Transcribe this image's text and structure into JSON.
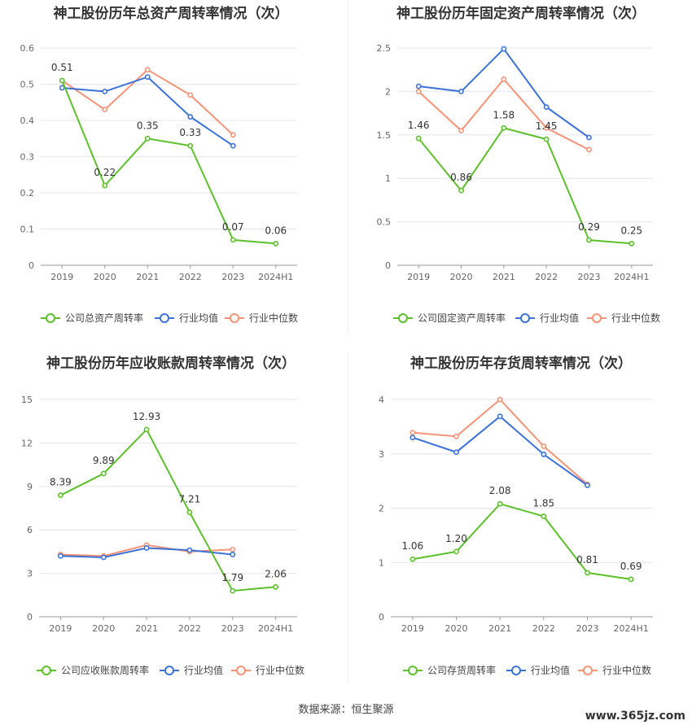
{
  "source_note": "数据来源：恒生聚源",
  "watermark": "www.365jz.com",
  "colors": {
    "company": "#5cc02b",
    "industry_avg": "#3c72d8",
    "industry_median": "#f59377"
  },
  "chart_data": [
    {
      "type": "line",
      "title": "神工股份历年总资产周转率情况（次）",
      "categories": [
        "2019",
        "2020",
        "2021",
        "2022",
        "2023",
        "2024H1"
      ],
      "y_ticks": [
        "0",
        "0.1",
        "0.2",
        "0.3",
        "0.4",
        "0.5",
        "0.6"
      ],
      "ylim": [
        0,
        0.6
      ],
      "grid": true,
      "legend_position": "bottom",
      "series": [
        {
          "name": "公司总资产周转率",
          "values": [
            0.51,
            0.22,
            0.35,
            0.33,
            0.07,
            0.06
          ],
          "labels": [
            "0.51",
            "0.22",
            "0.35",
            "0.33",
            "0.07",
            "0.06"
          ]
        },
        {
          "name": "行业均值",
          "values": [
            0.49,
            0.48,
            0.52,
            0.41,
            0.33,
            null
          ]
        },
        {
          "name": "行业中位数",
          "values": [
            0.51,
            0.43,
            0.54,
            0.47,
            0.36,
            null
          ]
        }
      ]
    },
    {
      "type": "line",
      "title": "神工股份历年固定资产周转率情况（次）",
      "categories": [
        "2019",
        "2020",
        "2021",
        "2022",
        "2023",
        "2024H1"
      ],
      "y_ticks": [
        "0",
        "0.5",
        "1",
        "1.5",
        "2",
        "2.5"
      ],
      "ylim": [
        0,
        2.5
      ],
      "grid": true,
      "legend_position": "bottom",
      "series": [
        {
          "name": "公司固定资产周转率",
          "values": [
            1.46,
            0.86,
            1.58,
            1.45,
            0.29,
            0.25
          ],
          "labels": [
            "1.46",
            "0.86",
            "1.58",
            "1.45",
            "0.29",
            "0.25"
          ]
        },
        {
          "name": "行业均值",
          "values": [
            2.06,
            2.0,
            2.49,
            1.82,
            1.47,
            null
          ]
        },
        {
          "name": "行业中位数",
          "values": [
            2.0,
            1.55,
            2.14,
            1.58,
            1.33,
            null
          ]
        }
      ]
    },
    {
      "type": "line",
      "title": "神工股份历年应收账款周转率情况（次）",
      "categories": [
        "2019",
        "2020",
        "2021",
        "2022",
        "2023",
        "2024H1"
      ],
      "y_ticks": [
        "0",
        "3",
        "6",
        "9",
        "12",
        "15"
      ],
      "ylim": [
        0,
        15
      ],
      "grid": true,
      "legend_position": "bottom",
      "series": [
        {
          "name": "公司应收账款周转率",
          "values": [
            8.39,
            9.89,
            12.93,
            7.21,
            1.79,
            2.06
          ],
          "labels": [
            "8.39",
            "9.89",
            "12.93",
            "7.21",
            "1.79",
            "2.06"
          ]
        },
        {
          "name": "行业均值",
          "values": [
            4.2,
            4.1,
            4.75,
            4.6,
            4.3,
            null
          ]
        },
        {
          "name": "行业中位数",
          "values": [
            4.3,
            4.2,
            4.95,
            4.5,
            4.65,
            null
          ]
        }
      ]
    },
    {
      "type": "line",
      "title": "神工股份历年存货周转率情况（次）",
      "categories": [
        "2019",
        "2020",
        "2021",
        "2022",
        "2023",
        "2024H1"
      ],
      "y_ticks": [
        "0",
        "1",
        "2",
        "3",
        "4"
      ],
      "ylim": [
        0,
        4
      ],
      "grid": true,
      "legend_position": "bottom",
      "series": [
        {
          "name": "公司存货周转率",
          "values": [
            1.06,
            1.2,
            2.08,
            1.85,
            0.81,
            0.69
          ],
          "labels": [
            "1.06",
            "1.20",
            "2.08",
            "1.85",
            "0.81",
            "0.69"
          ]
        },
        {
          "name": "行业均值",
          "values": [
            3.3,
            3.03,
            3.69,
            2.99,
            2.42,
            null
          ]
        },
        {
          "name": "行业中位数",
          "values": [
            3.39,
            3.32,
            4.0,
            3.14,
            2.44,
            null
          ]
        }
      ]
    }
  ]
}
